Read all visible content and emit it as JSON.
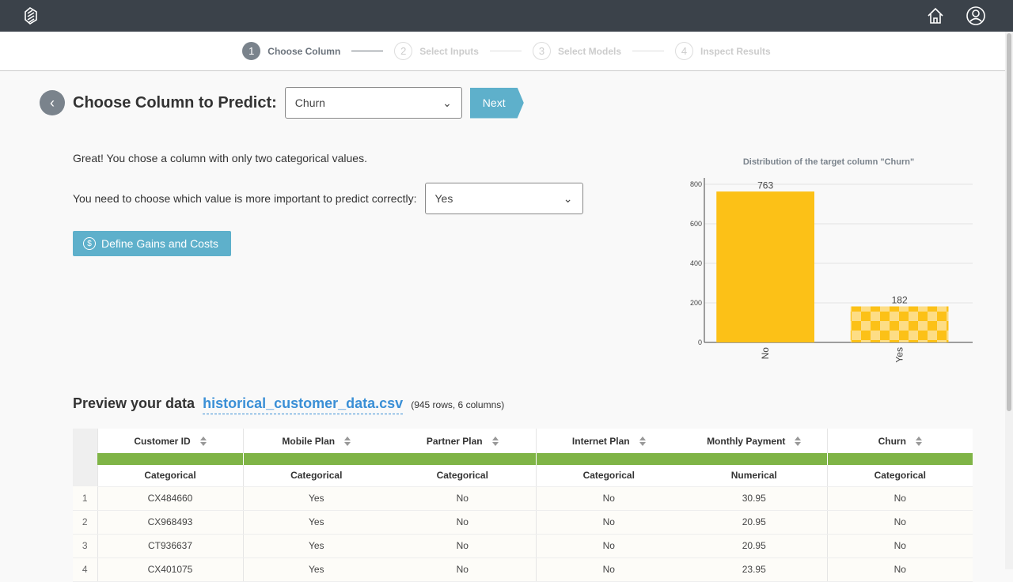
{
  "header": {
    "logo": "app-logo",
    "home_icon": "home-icon",
    "user_icon": "user-icon"
  },
  "steps": [
    {
      "num": "1",
      "label": "Choose Column"
    },
    {
      "num": "2",
      "label": "Select Inputs"
    },
    {
      "num": "3",
      "label": "Select Models"
    },
    {
      "num": "4",
      "label": "Inspect Results"
    }
  ],
  "title": "Choose Column to Predict:",
  "column_select": "Churn",
  "next_label": "Next",
  "info_text": "Great! You chose a column with only two categorical values.",
  "important_label": "You need to choose which value is more important to predict correctly:",
  "important_select": "Yes",
  "gains_label": "Define Gains and Costs",
  "preview": {
    "heading": "Preview your data",
    "file": "historical_customer_data.csv",
    "counts": "(945 rows, 6 columns)"
  },
  "table": {
    "columns": [
      "Customer ID",
      "Mobile Plan",
      "Partner Plan",
      "Internet Plan",
      "Monthly Payment",
      "Churn"
    ],
    "types": [
      "Categorical",
      "Categorical",
      "Categorical",
      "Categorical",
      "Numerical",
      "Categorical"
    ],
    "rows": [
      [
        "1",
        "CX484660",
        "Yes",
        "No",
        "No",
        "30.95",
        "No"
      ],
      [
        "2",
        "CX968493",
        "Yes",
        "No",
        "No",
        "20.95",
        "No"
      ],
      [
        "3",
        "CT936637",
        "Yes",
        "No",
        "No",
        "20.95",
        "No"
      ],
      [
        "4",
        "CX401075",
        "Yes",
        "No",
        "No",
        "23.95",
        "No"
      ]
    ]
  },
  "chart_data": {
    "type": "bar",
    "title": "Distribution of the target column \"Churn\"",
    "categories": [
      "No",
      "Yes"
    ],
    "values": [
      763,
      182
    ],
    "ylim": [
      0,
      800
    ],
    "yticks": [
      0,
      200,
      400,
      600,
      800
    ],
    "colors": {
      "bar": "#fcc117",
      "pattern": "#fddd85"
    },
    "grid": true
  }
}
